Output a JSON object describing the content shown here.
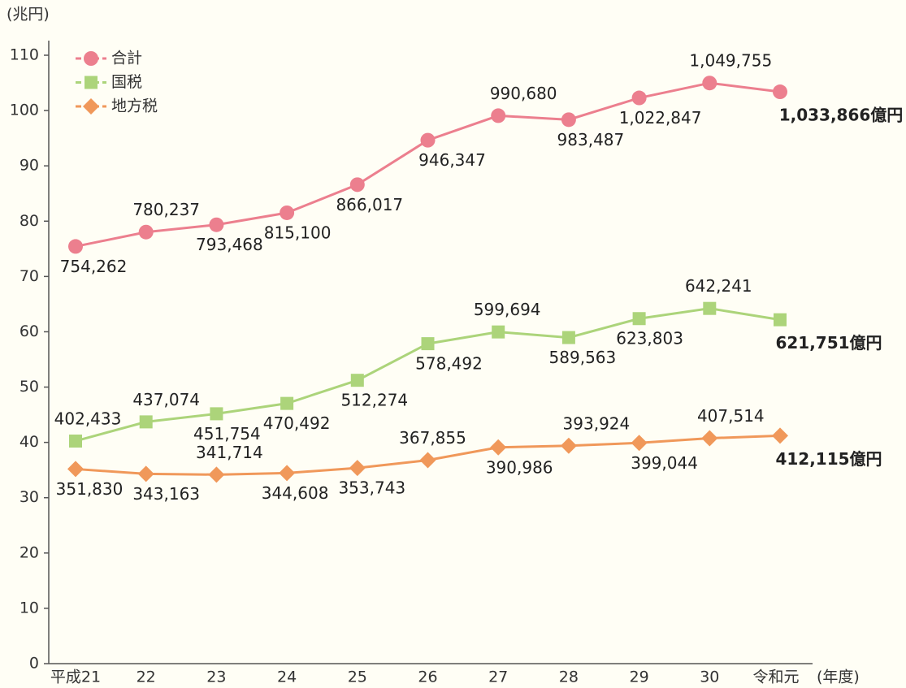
{
  "chart_data": {
    "type": "line",
    "y_label": "(兆円)",
    "x_label": "(年度)",
    "categories": [
      "平成21",
      "22",
      "23",
      "24",
      "25",
      "26",
      "27",
      "28",
      "29",
      "30",
      "令和元"
    ],
    "ylim": [
      0,
      110
    ],
    "yticks": [
      0,
      10,
      20,
      30,
      40,
      50,
      60,
      70,
      80,
      90,
      100,
      110
    ],
    "legend": "top-left",
    "series": [
      {
        "name": "合計",
        "color": "#ec7f8e",
        "marker": "circle",
        "values": [
          75.4262,
          78.0237,
          79.3468,
          81.51,
          86.6017,
          94.6347,
          99.068,
          98.3487,
          102.2847,
          104.9755,
          103.3866
        ],
        "value_labels": [
          "754,262",
          "780,237",
          "793,468",
          "815,100",
          "866,017",
          "946,347",
          "990,680",
          "983,487",
          "1,022,847",
          "1,049,755",
          "1,033,866億円"
        ]
      },
      {
        "name": "国税",
        "color": "#acd47a",
        "marker": "square",
        "values": [
          40.2433,
          43.7074,
          45.1754,
          47.0492,
          51.2274,
          57.8492,
          59.9694,
          58.9563,
          62.3803,
          64.2241,
          62.1751
        ],
        "value_labels": [
          "402,433",
          "437,074",
          "451,754",
          "470,492",
          "512,274",
          "578,492",
          "599,694",
          "589,563",
          "623,803",
          "642,241",
          "621,751億円"
        ]
      },
      {
        "name": "地方税",
        "color": "#f0985a",
        "marker": "diamond",
        "values": [
          35.183,
          34.3163,
          34.1714,
          34.4608,
          35.3743,
          36.7855,
          39.0986,
          39.3924,
          39.9044,
          40.7514,
          41.2115
        ],
        "value_labels": [
          "351,830",
          "343,163",
          "341,714",
          "344,608",
          "353,743",
          "367,855",
          "390,986",
          "393,924",
          "399,044",
          "407,514",
          "412,115億円"
        ]
      }
    ]
  }
}
